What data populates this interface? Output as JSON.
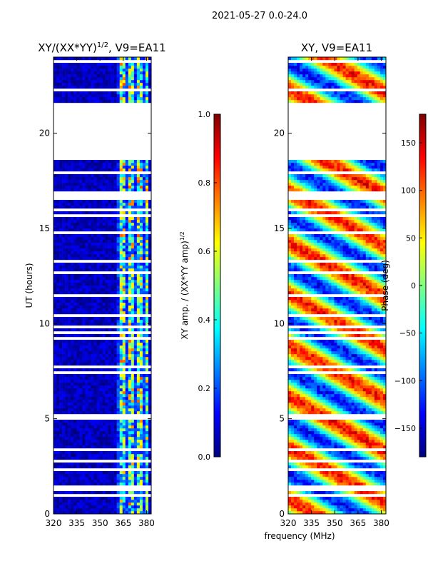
{
  "suptitle": "2021-05-27 0.0-24.0",
  "xlabel": "frequency (MHz)",
  "colors": {
    "background_blank": "#ffffff",
    "axes": "#000000"
  },
  "chart_data": [
    {
      "type": "heatmap",
      "title_main": "XY/(XX*YY)",
      "title_exp": "1/2",
      "title_tail": ", V9=EA11",
      "ylabel": "UT (hours)",
      "xlim": [
        320,
        383
      ],
      "ylim": [
        0,
        24
      ],
      "xticks": [
        320,
        335,
        350,
        365,
        380
      ],
      "yticks": [
        0,
        5,
        10,
        15,
        20
      ],
      "colormap": "jet",
      "color_range": [
        0.0,
        1.0
      ],
      "rfi_band_mhz": [
        361,
        382
      ],
      "blank_ut_ranges": [
        [
          18.6,
          21.6
        ],
        [
          1.2,
          1.5
        ],
        [
          16.5,
          17.0
        ],
        [
          0.0,
          0.05
        ]
      ],
      "colorbar": {
        "label_main": "XY amp. / (XX*YY amp)",
        "label_exp": "1/2",
        "range": [
          0.0,
          1.0
        ],
        "ticks": [
          0.0,
          0.2,
          0.4,
          0.6,
          0.8,
          1.0
        ],
        "tick_labels": [
          "0.0",
          "0.2",
          "0.4",
          "0.6",
          "0.8",
          "1.0"
        ]
      }
    },
    {
      "type": "heatmap",
      "title": "XY, V9=EA11",
      "xlim": [
        320,
        383
      ],
      "ylim": [
        0,
        24
      ],
      "xticks": [
        320,
        335,
        350,
        365,
        380
      ],
      "yticks": [
        0,
        5,
        10,
        15,
        20
      ],
      "colormap": "jet",
      "color_range": [
        -180,
        180
      ],
      "blank_ut_ranges": [
        [
          18.6,
          21.6
        ],
        [
          1.2,
          1.5
        ],
        [
          16.5,
          17.0
        ],
        [
          0.0,
          0.05
        ]
      ],
      "colorbar": {
        "label": "Phase (deg)",
        "range": [
          -180,
          180
        ],
        "ticks": [
          -150,
          -100,
          -50,
          0,
          50,
          100,
          150
        ],
        "tick_labels": [
          "−150",
          "−100",
          "−50",
          "0",
          "50",
          "100",
          "150"
        ]
      }
    }
  ]
}
